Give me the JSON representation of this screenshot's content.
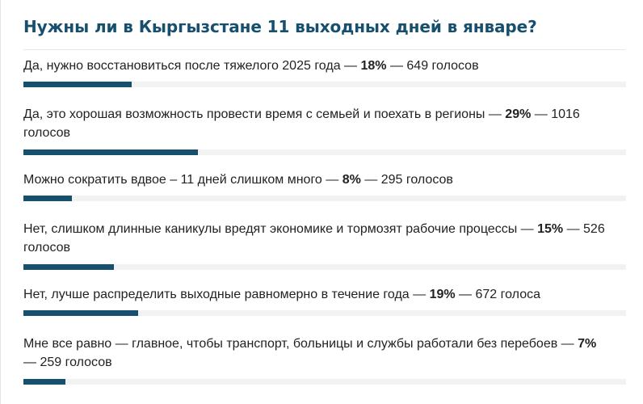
{
  "poll": {
    "title": "Нужны ли в Кыргызстане 11 выходных дней в январе?",
    "accent_color": "#17506e",
    "options": [
      {
        "text_before": "Да, нужно восстановиться после тяжелого 2025 года — ",
        "percent_label": "18%",
        "text_after": " — 649 голосов",
        "percent": 18
      },
      {
        "text_before": "Да, это хорошая возможность провести время с семьей и поехать в регионы — ",
        "percent_label": "29%",
        "text_after": " — 1016 голосов",
        "percent": 29
      },
      {
        "text_before": "Можно сократить вдвое – 11 дней слишком много — ",
        "percent_label": "8%",
        "text_after": " — 295 голосов",
        "percent": 8
      },
      {
        "text_before": "Нет, слишком длинные каникулы вредят экономике и тормозят рабочие процессы — ",
        "percent_label": "15%",
        "text_after": " — 526 голосов",
        "percent": 15
      },
      {
        "text_before": "Нет, лучше распределить выходные равномерно в течение года — ",
        "percent_label": "19%",
        "text_after": " — 672 голоса",
        "percent": 19
      },
      {
        "text_before": "Мне все равно — главное, чтобы транспорт, больницы и службы работали без перебоев — ",
        "percent_label": "7%",
        "text_after": " — 259 голосов",
        "percent": 7
      }
    ]
  }
}
